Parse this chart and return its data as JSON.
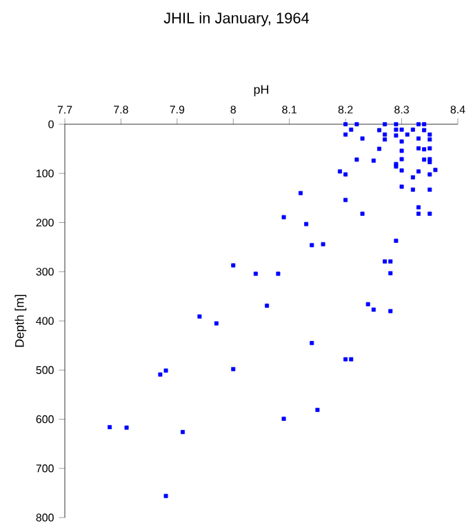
{
  "chart_data": {
    "type": "scatter",
    "title": "JHIL in January, 1964",
    "xlabel": "pH",
    "ylabel": "Depth [m]",
    "xlim": [
      7.7,
      8.4
    ],
    "xticks": [
      7.7,
      7.8,
      7.9,
      8,
      8.1,
      8.2,
      8.3,
      8.4
    ],
    "ylim": [
      800,
      0
    ],
    "yticks": [
      0,
      100,
      200,
      300,
      400,
      500,
      600,
      700,
      800
    ],
    "marker": "square",
    "series": [
      {
        "color": "#0000ff",
        "x": [
          8.2,
          8.22,
          8.27,
          8.29,
          8.33,
          8.34,
          8.21,
          8.26,
          8.29,
          8.3,
          8.32,
          8.34,
          8.2,
          8.27,
          8.29,
          8.31,
          8.35,
          8.23,
          8.27,
          8.3,
          8.33,
          8.35,
          8.26,
          8.3,
          8.33,
          8.34,
          8.35,
          8.22,
          8.25,
          8.3,
          8.34,
          8.35,
          8.35,
          8.29,
          8.29,
          8.19,
          8.2,
          8.3,
          8.33,
          8.36,
          8.32,
          8.35,
          8.3,
          8.32,
          8.35,
          8.12,
          8.2,
          8.33,
          8.23,
          8.33,
          8.35,
          8.09,
          8.13,
          8.29,
          8.14,
          8.16,
          8.27,
          8.28,
          8.28,
          8.04,
          8.08,
          8.0,
          8.06,
          8.24,
          8.25,
          8.28,
          7.94,
          7.97,
          8.14,
          8.2,
          8.21,
          7.88,
          7.87,
          8.0,
          8.15,
          8.09,
          7.78,
          7.81,
          7.91,
          7.88
        ],
        "values": [
          0,
          0,
          0,
          0,
          0,
          0,
          11,
          12,
          11,
          11,
          11,
          12,
          21,
          21,
          23,
          21,
          21,
          29,
          31,
          35,
          29,
          31,
          50,
          54,
          49,
          51,
          49,
          72,
          74,
          71,
          72,
          71,
          77,
          81,
          86,
          96,
          102,
          94,
          96,
          93,
          108,
          102,
          127,
          133,
          133,
          140,
          154,
          169,
          182,
          182,
          182,
          189,
          203,
          237,
          246,
          244,
          279,
          279,
          303,
          304,
          304,
          287,
          369,
          366,
          377,
          380,
          391,
          405,
          445,
          478,
          478,
          501,
          509,
          498,
          581,
          599,
          616,
          617,
          626,
          756
        ]
      }
    ]
  }
}
